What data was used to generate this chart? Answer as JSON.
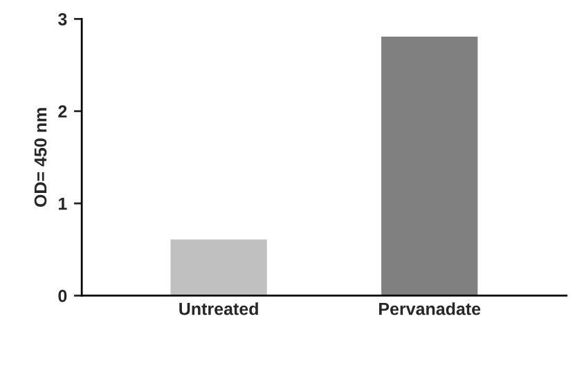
{
  "chart_data": {
    "type": "bar",
    "ylabel": "OD= 450 nm",
    "categories": [
      "Untreated",
      "Pervanadate"
    ],
    "values": [
      0.6,
      2.8
    ],
    "colors": [
      "#c0c0c0",
      "#808080"
    ],
    "ylim": [
      0,
      3
    ],
    "yticks": [
      0,
      1,
      2,
      3
    ],
    "grid": false,
    "legend": false
  }
}
